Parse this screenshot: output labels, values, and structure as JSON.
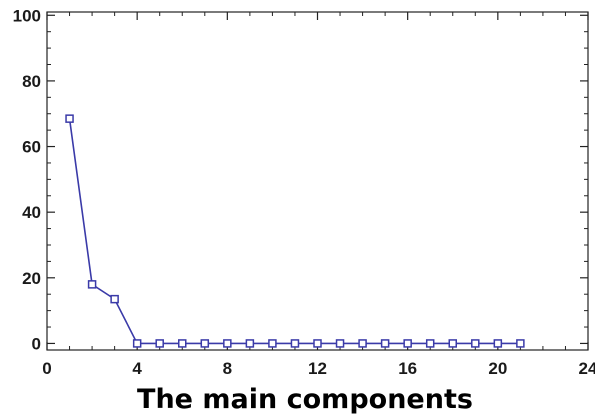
{
  "chart_data": {
    "type": "line",
    "title": "",
    "xlabel": "The main components",
    "ylabel": "",
    "xlim": [
      0,
      24
    ],
    "ylim": [
      -2,
      101
    ],
    "xticks": [
      0,
      4,
      8,
      12,
      16,
      20,
      24
    ],
    "yticks": [
      0,
      20,
      40,
      60,
      80,
      100
    ],
    "grid": false,
    "legend": "none",
    "line_color": "#3a3aa8",
    "series": [
      {
        "x": [
          1,
          2,
          3,
          4,
          5,
          6,
          7,
          8,
          9,
          10,
          11,
          12,
          13,
          14,
          15,
          16,
          17,
          18,
          19,
          20,
          21
        ],
        "values": [
          68.5,
          18,
          13.5,
          0,
          0,
          0,
          0,
          0,
          0,
          0,
          0,
          0,
          0,
          0,
          0,
          0,
          0,
          0,
          0,
          0,
          0
        ]
      }
    ]
  }
}
